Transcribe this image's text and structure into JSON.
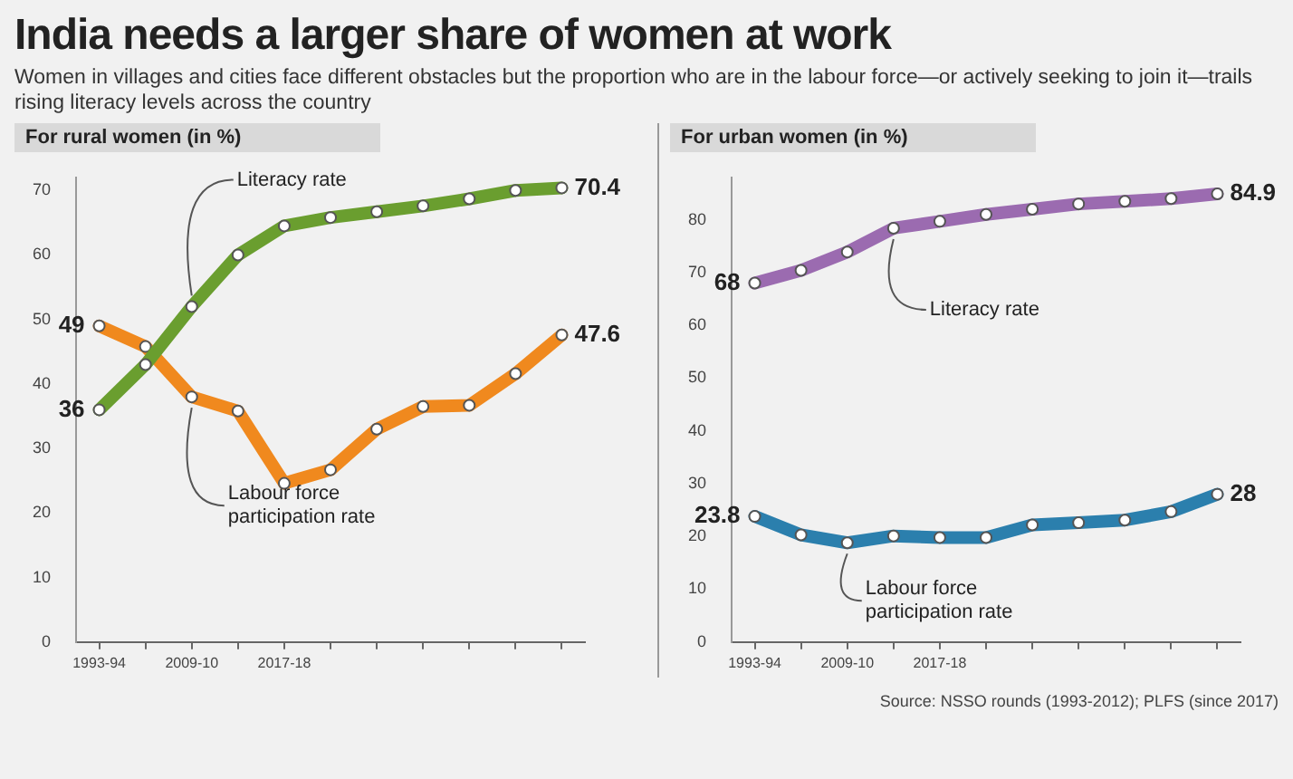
{
  "chart_data": [
    {
      "type": "line",
      "title": "India needs a larger share of women at work",
      "subtitle": "Women in villages and cities face different obstacles but the proportion who are in the labour force—or actively seeking to join it—trails rising literacy levels across the country",
      "ylabel": "For rural women (in %)",
      "categories": [
        "1993-94",
        null,
        "2009-10",
        null,
        "2017-18",
        null,
        null,
        null,
        null,
        null,
        null
      ],
      "series": [
        {
          "name": "Literacy rate",
          "color": "#6a9e2f",
          "values": [
            36,
            43,
            52,
            60,
            64.5,
            65.8,
            66.7,
            67.6,
            68.7,
            70,
            70.4
          ],
          "value_labels": [
            "36",
            null,
            null,
            null,
            null,
            null,
            null,
            null,
            null,
            null,
            "70.4"
          ]
        },
        {
          "name": "Labour force participation rate",
          "color": "#f0891e",
          "values": [
            49,
            45.8,
            38,
            35.8,
            24.6,
            26.7,
            33,
            36.5,
            36.7,
            41.6,
            47.6
          ],
          "value_labels": [
            "49",
            null,
            null,
            null,
            null,
            null,
            null,
            null,
            null,
            null,
            "47.6"
          ]
        }
      ],
      "ylim": [
        0,
        72
      ],
      "yticks": [
        0,
        10,
        20,
        30,
        40,
        50,
        60,
        70
      ],
      "marker": "circle",
      "grid": false
    },
    {
      "type": "line",
      "ylabel": "For urban women  (in %)",
      "categories": [
        "1993-94",
        null,
        "2009-10",
        null,
        "2017-18",
        null,
        null,
        null,
        null,
        null,
        null
      ],
      "series": [
        {
          "name": "Literacy rate",
          "color": "#9b6bb0",
          "values": [
            68,
            70.4,
            73.9,
            78.4,
            79.7,
            81,
            82,
            83,
            83.5,
            84,
            84.9
          ],
          "value_labels": [
            "68",
            null,
            null,
            null,
            null,
            null,
            null,
            null,
            null,
            null,
            "84.9"
          ]
        },
        {
          "name": "Labour force participation rate",
          "color": "#2b7fad",
          "values": [
            23.8,
            20.3,
            18.8,
            20.1,
            19.8,
            19.8,
            22.2,
            22.6,
            23.1,
            24.7,
            28
          ],
          "value_labels": [
            "23.8",
            null,
            null,
            null,
            null,
            null,
            null,
            null,
            null,
            null,
            "28"
          ]
        }
      ],
      "ylim": [
        0,
        88
      ],
      "yticks": [
        0,
        10,
        20,
        30,
        40,
        50,
        60,
        70,
        80
      ],
      "marker": "circle",
      "grid": false,
      "annotations": [
        "Source: NSSO rounds (1993-2012); PLFS (since 2017)"
      ]
    }
  ]
}
